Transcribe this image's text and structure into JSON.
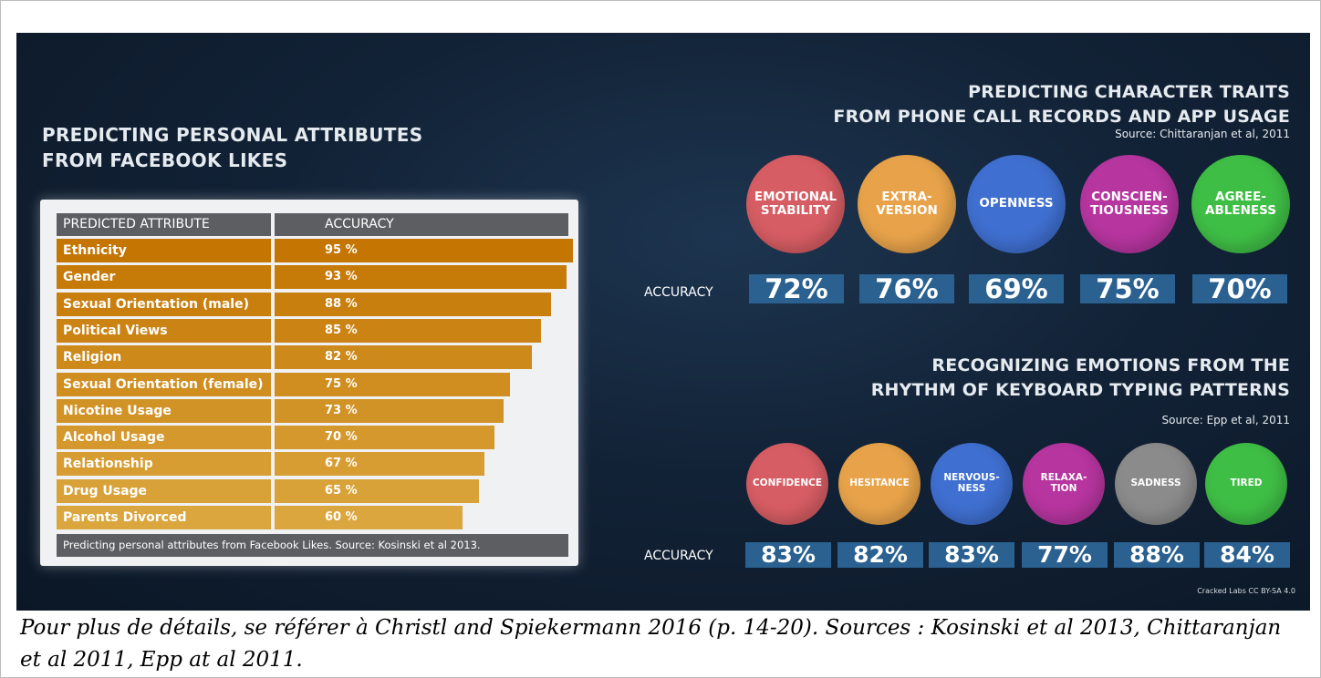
{
  "left_section": {
    "title_line1": "PREDICTING PERSONAL ATTRIBUTES",
    "title_line2": "FROM FACEBOOK LIKES",
    "table": {
      "col_headers": [
        "PREDICTED ATTRIBUTE",
        "ACCURACY"
      ],
      "footer": "Predicting personal attributes from Facebook Likes. Source: Kosinski et al 2013."
    }
  },
  "top_right": {
    "title_line1": "PREDICTING CHARACTER TRAITS",
    "title_line2": "FROM PHONE CALL RECORDS AND APP USAGE",
    "source": "Source: Chittaranjan et al, 2011",
    "accuracy_label": "ACCURACY",
    "traits": [
      {
        "label": "EMOTIONAL\nSTABILITY",
        "accuracy": "72%",
        "color": "#d65d63"
      },
      {
        "label": "EXTRA-\nVERSION",
        "accuracy": "76%",
        "color": "#e8a34a"
      },
      {
        "label": "OPENNESS",
        "accuracy": "69%",
        "color": "#3f6fd0"
      },
      {
        "label": "CONSCIEN-\nTIOUSNESS",
        "accuracy": "75%",
        "color": "#b6359f"
      },
      {
        "label": "AGREE-\nABLENESS",
        "accuracy": "70%",
        "color": "#3fbe45"
      }
    ]
  },
  "bottom_right": {
    "title_line1": "RECOGNIZING EMOTIONS FROM THE",
    "title_line2": "RHYTHM OF KEYBOARD TYPING PATTERNS",
    "source": "Source: Epp et al, 2011",
    "accuracy_label": "ACCURACY",
    "emotions": [
      {
        "label": "CONFIDENCE",
        "accuracy": "83%",
        "color": "#d65d63"
      },
      {
        "label": "HESITANCE",
        "accuracy": "82%",
        "color": "#e8a34a"
      },
      {
        "label": "NERVOUS-\nNESS",
        "accuracy": "83%",
        "color": "#3f6fd0"
      },
      {
        "label": "RELAXA-\nTION",
        "accuracy": "77%",
        "color": "#b6359f"
      },
      {
        "label": "SADNESS",
        "accuracy": "88%",
        "color": "#8b8b8b"
      },
      {
        "label": "TIRED",
        "accuracy": "84%",
        "color": "#3fbe45"
      }
    ]
  },
  "credit": "Cracked Labs CC BY-SA 4.0",
  "caption": "Pour plus de détails, se référer à Christl and Spiekermann 2016 (p. 14-20). Sources : Kosinski et al 2013, Chittaranjan et al 2011, Epp at al 2011.",
  "chart_data": {
    "type": "bar",
    "title": "PREDICTING PERSONAL ATTRIBUTES FROM FACEBOOK LIKES",
    "xlabel": "PREDICTED ATTRIBUTE",
    "ylabel": "ACCURACY",
    "categories": [
      "Ethnicity",
      "Gender",
      "Sexual Orientation (male)",
      "Political Views",
      "Religion",
      "Sexual Orientation (female)",
      "Nicotine Usage",
      "Alcohol Usage",
      "Relationship",
      "Drug Usage",
      "Parents Divorced"
    ],
    "values": [
      95,
      93,
      88,
      85,
      82,
      75,
      73,
      70,
      67,
      65,
      60
    ],
    "value_labels": [
      "95 %",
      "93 %",
      "88 %",
      "85 %",
      "82 %",
      "75 %",
      "73 %",
      "70 %",
      "67 %",
      "65 %",
      "60 %"
    ],
    "bar_colors": [
      "#c47502",
      "#c67a08",
      "#c97f0e",
      "#cb8414",
      "#cd891a",
      "#d08e20",
      "#d29326",
      "#d5982c",
      "#d79d32",
      "#d9a238",
      "#dba63d"
    ]
  }
}
